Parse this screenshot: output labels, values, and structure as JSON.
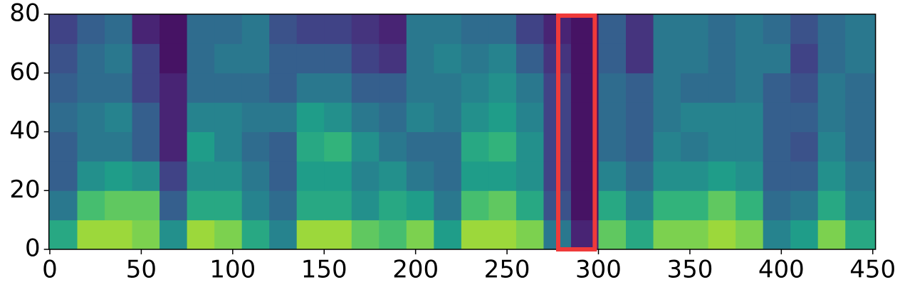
{
  "chart_data": {
    "type": "heatmap",
    "colormap": "viridis",
    "xlim": [
      -0.5,
      451.5
    ],
    "ylim": [
      0,
      80
    ],
    "xticks": [
      0,
      50,
      100,
      150,
      200,
      250,
      300,
      350,
      400,
      450
    ],
    "yticks": [
      0,
      20,
      40,
      60,
      80
    ],
    "x_edges": [
      -0.5,
      15,
      30,
      45,
      60,
      75,
      90,
      105,
      120,
      135,
      150,
      165,
      180,
      195,
      210,
      225,
      240,
      255,
      270,
      285,
      300,
      315,
      330,
      345,
      360,
      375,
      390,
      405,
      420,
      435,
      451.5
    ],
    "y_edges": [
      0,
      10,
      20,
      30,
      40,
      50,
      60,
      70,
      80
    ],
    "z": [
      [
        0.6,
        0.4,
        0.3,
        0.3,
        0.35,
        0.3,
        0.25,
        0.2
      ],
      [
        0.85,
        0.7,
        0.5,
        0.4,
        0.4,
        0.35,
        0.35,
        0.3
      ],
      [
        0.85,
        0.75,
        0.55,
        0.4,
        0.45,
        0.35,
        0.4,
        0.35
      ],
      [
        0.8,
        0.75,
        0.5,
        0.3,
        0.3,
        0.2,
        0.2,
        0.1
      ],
      [
        0.5,
        0.3,
        0.2,
        0.1,
        0.1,
        0.1,
        0.05,
        0.05
      ],
      [
        0.85,
        0.6,
        0.5,
        0.55,
        0.45,
        0.35,
        0.35,
        0.35
      ],
      [
        0.8,
        0.6,
        0.5,
        0.45,
        0.45,
        0.35,
        0.4,
        0.35
      ],
      [
        0.6,
        0.45,
        0.4,
        0.35,
        0.4,
        0.35,
        0.4,
        0.4
      ],
      [
        0.45,
        0.35,
        0.3,
        0.3,
        0.4,
        0.3,
        0.3,
        0.25
      ],
      [
        0.85,
        0.6,
        0.55,
        0.6,
        0.55,
        0.4,
        0.3,
        0.2
      ],
      [
        0.85,
        0.6,
        0.55,
        0.65,
        0.5,
        0.4,
        0.3,
        0.2
      ],
      [
        0.75,
        0.5,
        0.45,
        0.5,
        0.4,
        0.3,
        0.2,
        0.15
      ],
      [
        0.7,
        0.6,
        0.5,
        0.4,
        0.35,
        0.3,
        0.15,
        0.1
      ],
      [
        0.8,
        0.55,
        0.4,
        0.35,
        0.45,
        0.4,
        0.4,
        0.4
      ],
      [
        0.55,
        0.4,
        0.35,
        0.35,
        0.4,
        0.4,
        0.45,
        0.4
      ],
      [
        0.85,
        0.7,
        0.55,
        0.6,
        0.5,
        0.45,
        0.4,
        0.35
      ],
      [
        0.85,
        0.75,
        0.55,
        0.65,
        0.55,
        0.5,
        0.45,
        0.35
      ],
      [
        0.8,
        0.6,
        0.5,
        0.5,
        0.45,
        0.4,
        0.3,
        0.2
      ],
      [
        0.4,
        0.25,
        0.2,
        0.2,
        0.2,
        0.2,
        0.15,
        0.1
      ],
      [
        0.1,
        0.05,
        0.05,
        0.05,
        0.05,
        0.05,
        0.05,
        0.05
      ],
      [
        0.75,
        0.6,
        0.45,
        0.35,
        0.35,
        0.35,
        0.3,
        0.3
      ],
      [
        0.6,
        0.45,
        0.35,
        0.3,
        0.3,
        0.3,
        0.15,
        0.15
      ],
      [
        0.8,
        0.65,
        0.5,
        0.45,
        0.4,
        0.4,
        0.4,
        0.4
      ],
      [
        0.8,
        0.65,
        0.5,
        0.4,
        0.45,
        0.35,
        0.4,
        0.4
      ],
      [
        0.85,
        0.75,
        0.55,
        0.45,
        0.45,
        0.35,
        0.35,
        0.35
      ],
      [
        0.8,
        0.65,
        0.5,
        0.45,
        0.45,
        0.4,
        0.4,
        0.4
      ],
      [
        0.45,
        0.35,
        0.3,
        0.3,
        0.3,
        0.3,
        0.4,
        0.35
      ],
      [
        0.55,
        0.4,
        0.3,
        0.25,
        0.3,
        0.25,
        0.2,
        0.25
      ],
      [
        0.8,
        0.6,
        0.5,
        0.45,
        0.4,
        0.4,
        0.35,
        0.35
      ],
      [
        0.6,
        0.45,
        0.4,
        0.35,
        0.35,
        0.35,
        0.4,
        0.4
      ]
    ],
    "highlight": {
      "x": [
        278,
        298
      ],
      "color": "#ef3a3a"
    }
  }
}
